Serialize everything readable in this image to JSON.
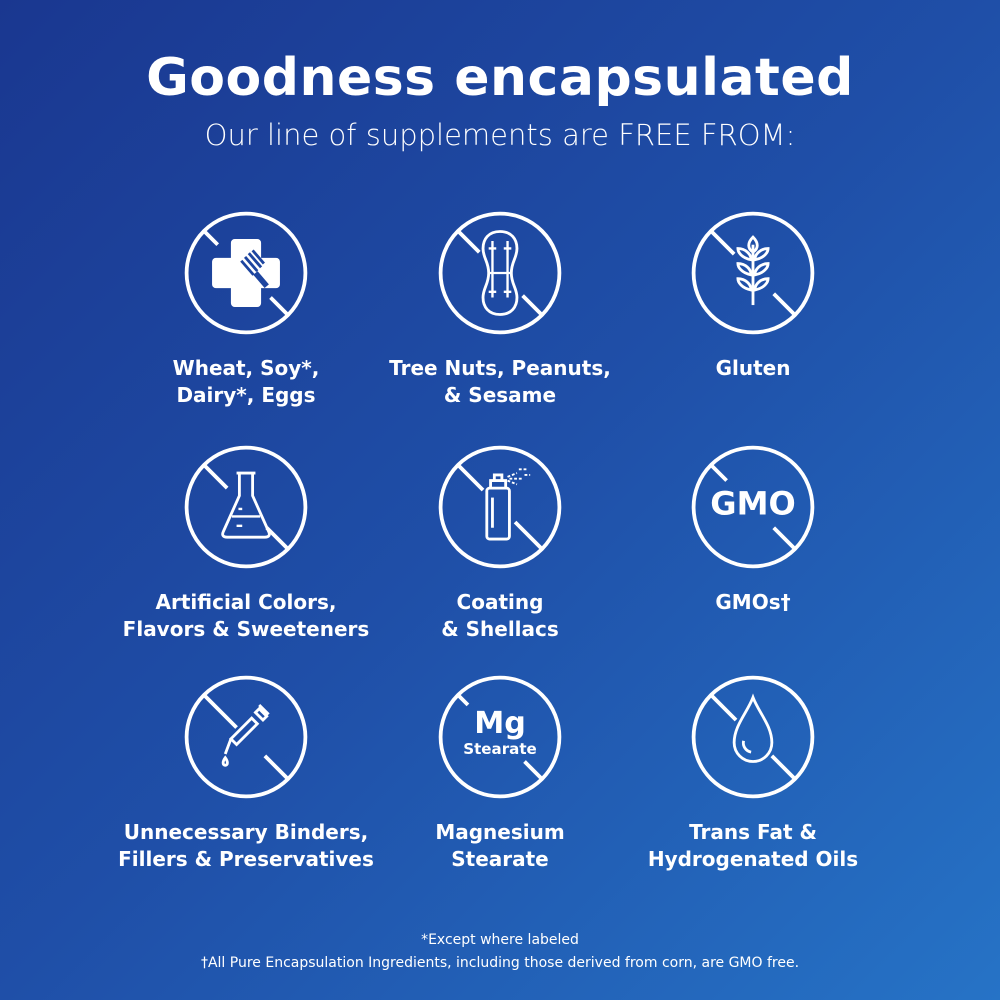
{
  "header": {
    "title": "Goodness encapsulated",
    "subtitle": "Our line of supplements are FREE FROM:"
  },
  "items": [
    {
      "icon": "allergen-cross-fork-icon",
      "label": "Wheat, Soy*,\nDairy*, Eggs"
    },
    {
      "icon": "peanut-icon",
      "label": "Tree Nuts, Peanuts,\n& Sesame"
    },
    {
      "icon": "wheat-icon",
      "label": "Gluten"
    },
    {
      "icon": "flask-icon",
      "label": "Artificial Colors,\nFlavors & Sweeteners"
    },
    {
      "icon": "spray-can-icon",
      "label": "Coating\n& Shellacs"
    },
    {
      "icon": "gmo-icon",
      "label": "GMOs†",
      "icon_text": "GMO"
    },
    {
      "icon": "dropper-icon",
      "label": "Unnecessary Binders,\nFillers & Preservatives"
    },
    {
      "icon": "mg-stearate-icon",
      "label": "Magnesium\nStearate",
      "icon_text": "Mg",
      "icon_subtext": "Stearate"
    },
    {
      "icon": "oil-drop-icon",
      "label": "Trans Fat &\nHydrogenated Oils"
    }
  ],
  "footnotes": [
    "*Except where labeled",
    "†All Pure Encapsulation Ingredients, including those derived from corn, are GMO free."
  ],
  "colors": {
    "background_start": "#1a3790",
    "background_end": "#2673c6",
    "foreground": "#ffffff"
  }
}
